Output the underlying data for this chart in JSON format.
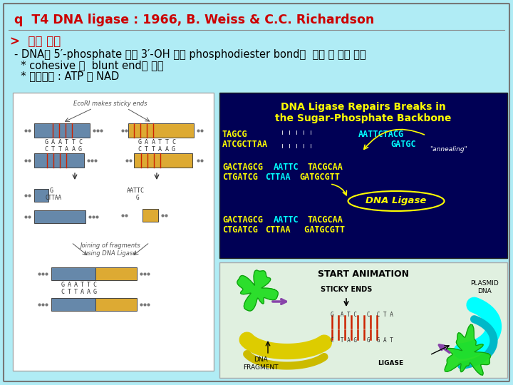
{
  "bg_color": "#b0ecf5",
  "title_text": "q  T4 DNA ligase : 1966, B. Weiss & C.C. Richardson",
  "title_color": "#cc0000",
  "title_fontsize": 12.5,
  "section_arrow": ">",
  "section_title": "작용 기작",
  "section_color": "#cc0000",
  "section_fontsize": 12,
  "bullet1": "- DNA의 5′-phosphate 기와 3′-OH 간의 phosphodiester bond를  연결 해 주는 역할",
  "bullet2": "  * cohesive 및  blunt end의 연결",
  "bullet3": "  * 에너지원 : ATP 및 NAD",
  "bullet_color": "#000000",
  "bullet_fontsize": 10.5,
  "dna_box1_color": "#6688aa",
  "dna_box2_color": "#ddaa33",
  "rt_bg": "#000070",
  "rb_bg": "#e8f5e8",
  "dna_ligase_title1": "DNA Ligase Repairs Breaks in",
  "dna_ligase_title2": "the Sugar-Phosphate Backbone",
  "start_animation": "START ANIMATION",
  "sticky_ends": "STICKY ENDS",
  "plasmid_dna": "PLASMID\nDNA",
  "dna_fragment": "DNA\nFRAGMENT",
  "ligase_label": "LIGASE"
}
